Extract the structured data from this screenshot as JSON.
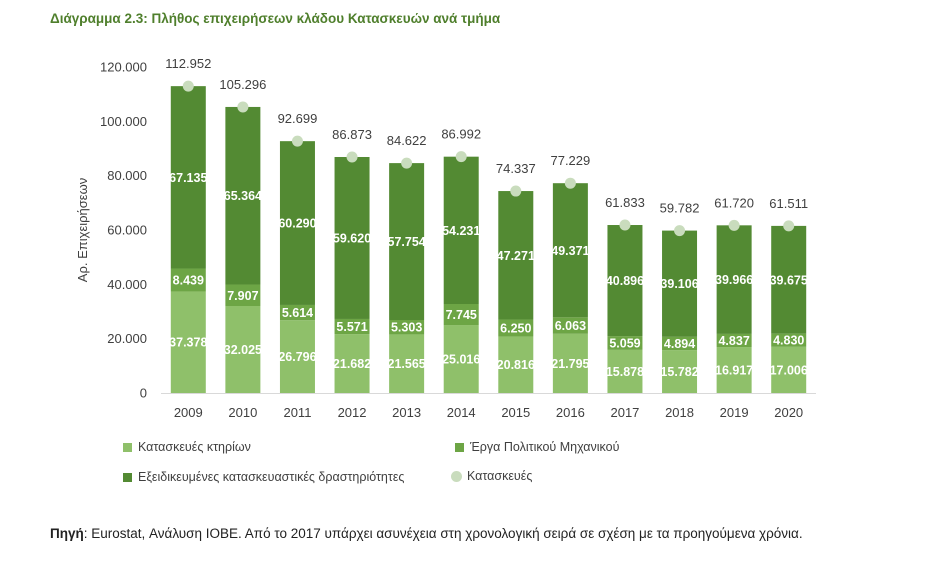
{
  "title": "Διάγραμμα 2.3: Πλήθος επιχειρήσεων κλάδου Κατασκευών ανά τμήμα",
  "source": {
    "label": "Πηγή",
    "text": ": Eurostat, Ανάλυση ΙΟΒΕ. Από το 2017 υπάρχει ασυνέχεια στη χρονολογική σειρά σε σχέση με τα προηγούμενα χρόνια."
  },
  "chart_data": {
    "type": "bar",
    "stacked": true,
    "ylabel": "Αρ. Επιχειρήσεων",
    "ylim": [
      0,
      120000
    ],
    "yticks": [
      0,
      20000,
      40000,
      60000,
      80000,
      100000,
      120000
    ],
    "ytick_labels": [
      "0",
      "20.000",
      "40.000",
      "60.000",
      "80.000",
      "100.000",
      "120.000"
    ],
    "categories": [
      "2009",
      "2010",
      "2011",
      "2012",
      "2013",
      "2014",
      "2015",
      "2016",
      "2017",
      "2018",
      "2019",
      "2020"
    ],
    "series": [
      {
        "name": "Κατασκευές κτηρίων",
        "color": "#8fc06a",
        "values": [
          37378,
          32025,
          26796,
          21682,
          21565,
          25016,
          20816,
          21795,
          15878,
          15782,
          16917,
          17006
        ],
        "labels": [
          "37.378",
          "32.025",
          "26.796",
          "21.682",
          "21.565",
          "25.016",
          "20.816",
          "21.795",
          "15.878",
          "15.782",
          "16.917",
          "17.006"
        ]
      },
      {
        "name": "Έργα Πολιτικού Μηχανικού",
        "color": "#6da545",
        "values": [
          8439,
          7907,
          5614,
          5571,
          5303,
          7745,
          6250,
          6063,
          5059,
          4894,
          4837,
          4830
        ],
        "labels": [
          "8.439",
          "7.907",
          "5.614",
          "5.571",
          "5.303",
          "7.745",
          "6.250",
          "6.063",
          "5.059",
          "4.894",
          "4.837",
          "4.830"
        ]
      },
      {
        "name": "Εξειδικευμένες κατασκευαστικές δραστηριότητες",
        "color": "#538a33",
        "values": [
          67135,
          65364,
          60290,
          59620,
          57754,
          54231,
          47271,
          49371,
          40896,
          39106,
          39966,
          39675
        ],
        "labels": [
          "67.135",
          "65.364",
          "60.290",
          "59.620",
          "57.754",
          "54.231",
          "47.271",
          "49.371",
          "40.896",
          "39.106",
          "39.966",
          "39.675"
        ]
      }
    ],
    "total": {
      "name": "Κατασκευές",
      "color": "#c9dcbd",
      "values": [
        112952,
        105296,
        92699,
        86873,
        84622,
        86992,
        74337,
        77229,
        61833,
        59782,
        61720,
        61511
      ],
      "labels": [
        "112.952",
        "105.296",
        "92.699",
        "86.873",
        "84.622",
        "86.992",
        "74.337",
        "77.229",
        "61.833",
        "59.782",
        "61.720",
        "61.511"
      ]
    },
    "legend_position": "bottom",
    "grid": false
  }
}
